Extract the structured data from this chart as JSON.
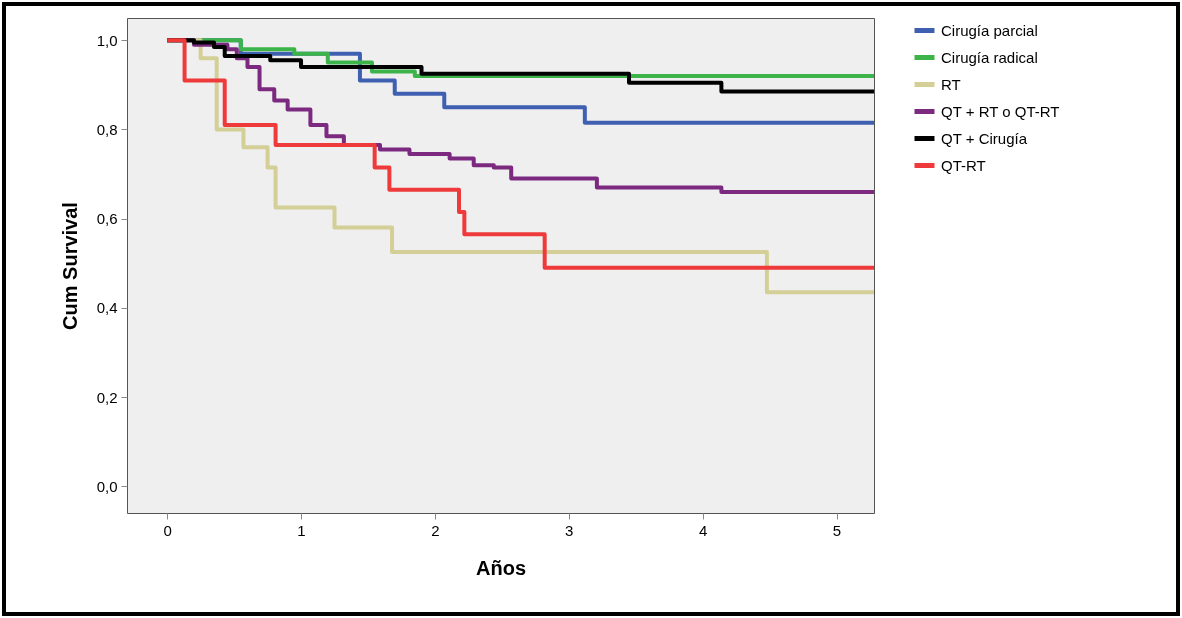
{
  "chart_data": {
    "type": "step",
    "xlabel": "Años",
    "ylabel": "Cum Survival",
    "xlim": [
      -0.3,
      5.28
    ],
    "ylim": [
      -0.06,
      1.05
    ],
    "xticks": [
      0,
      1,
      2,
      3,
      4,
      5
    ],
    "yticks": [
      {
        "value": 0,
        "label": "0,0"
      },
      {
        "value": 0.2,
        "label": "0,2"
      },
      {
        "value": 0.4,
        "label": "0,4"
      },
      {
        "value": 0.6,
        "label": "0,6"
      },
      {
        "value": 0.8,
        "label": "0,8"
      },
      {
        "value": 1,
        "label": "1,0"
      }
    ],
    "grid": false,
    "legend": "top right",
    "line_style": "solid",
    "marker": "none",
    "series": [
      {
        "name": "Cirugía parcial",
        "color": "#3f5fb0",
        "x": [
          0,
          0.55,
          1.44,
          1.7,
          2.07,
          3.12,
          5.28
        ],
        "values": [
          1.0,
          0.97,
          0.91,
          0.88,
          0.85,
          0.815,
          0.815
        ]
      },
      {
        "name": "Cirugía radical",
        "color": "#3cb44a",
        "x": [
          0,
          0.55,
          0.95,
          1.2,
          1.53,
          1.85,
          5.28
        ],
        "values": [
          1.0,
          0.98,
          0.97,
          0.95,
          0.93,
          0.92,
          0.92
        ]
      },
      {
        "name": "RT",
        "color": "#d4cf96",
        "x": [
          0,
          0.25,
          0.37,
          0.57,
          0.75,
          0.81,
          1.25,
          1.68,
          4.48,
          5.28
        ],
        "values": [
          1.0,
          0.96,
          0.8,
          0.76,
          0.715,
          0.625,
          0.58,
          0.525,
          0.435,
          0.435
        ]
      },
      {
        "name": "QT + RT o QT-RT",
        "color": "#7b2a80",
        "x": [
          0,
          0.2,
          0.45,
          0.52,
          0.6,
          0.69,
          0.8,
          0.9,
          1.07,
          1.19,
          1.32,
          1.59,
          1.81,
          2.11,
          2.29,
          2.44,
          2.57,
          3.21,
          4.14,
          5.28
        ],
        "values": [
          1.0,
          0.99,
          0.98,
          0.96,
          0.94,
          0.89,
          0.865,
          0.845,
          0.81,
          0.785,
          0.765,
          0.755,
          0.745,
          0.735,
          0.72,
          0.715,
          0.69,
          0.67,
          0.66,
          0.66
        ]
      },
      {
        "name": "QT + Cirugía",
        "color": "#000000",
        "x": [
          0,
          0.2,
          0.35,
          0.43,
          0.77,
          1.0,
          1.9,
          3.45,
          4.14,
          5.28
        ],
        "values": [
          1.0,
          0.995,
          0.985,
          0.965,
          0.955,
          0.94,
          0.925,
          0.905,
          0.885,
          0.885
        ]
      },
      {
        "name": "QT-RT",
        "color": "#ee3a3a",
        "x": [
          0,
          0.13,
          0.43,
          0.81,
          1.55,
          1.66,
          2.18,
          2.22,
          2.82,
          5.28
        ],
        "values": [
          1.0,
          0.91,
          0.81,
          0.765,
          0.715,
          0.665,
          0.615,
          0.565,
          0.49,
          0.49
        ]
      }
    ]
  }
}
